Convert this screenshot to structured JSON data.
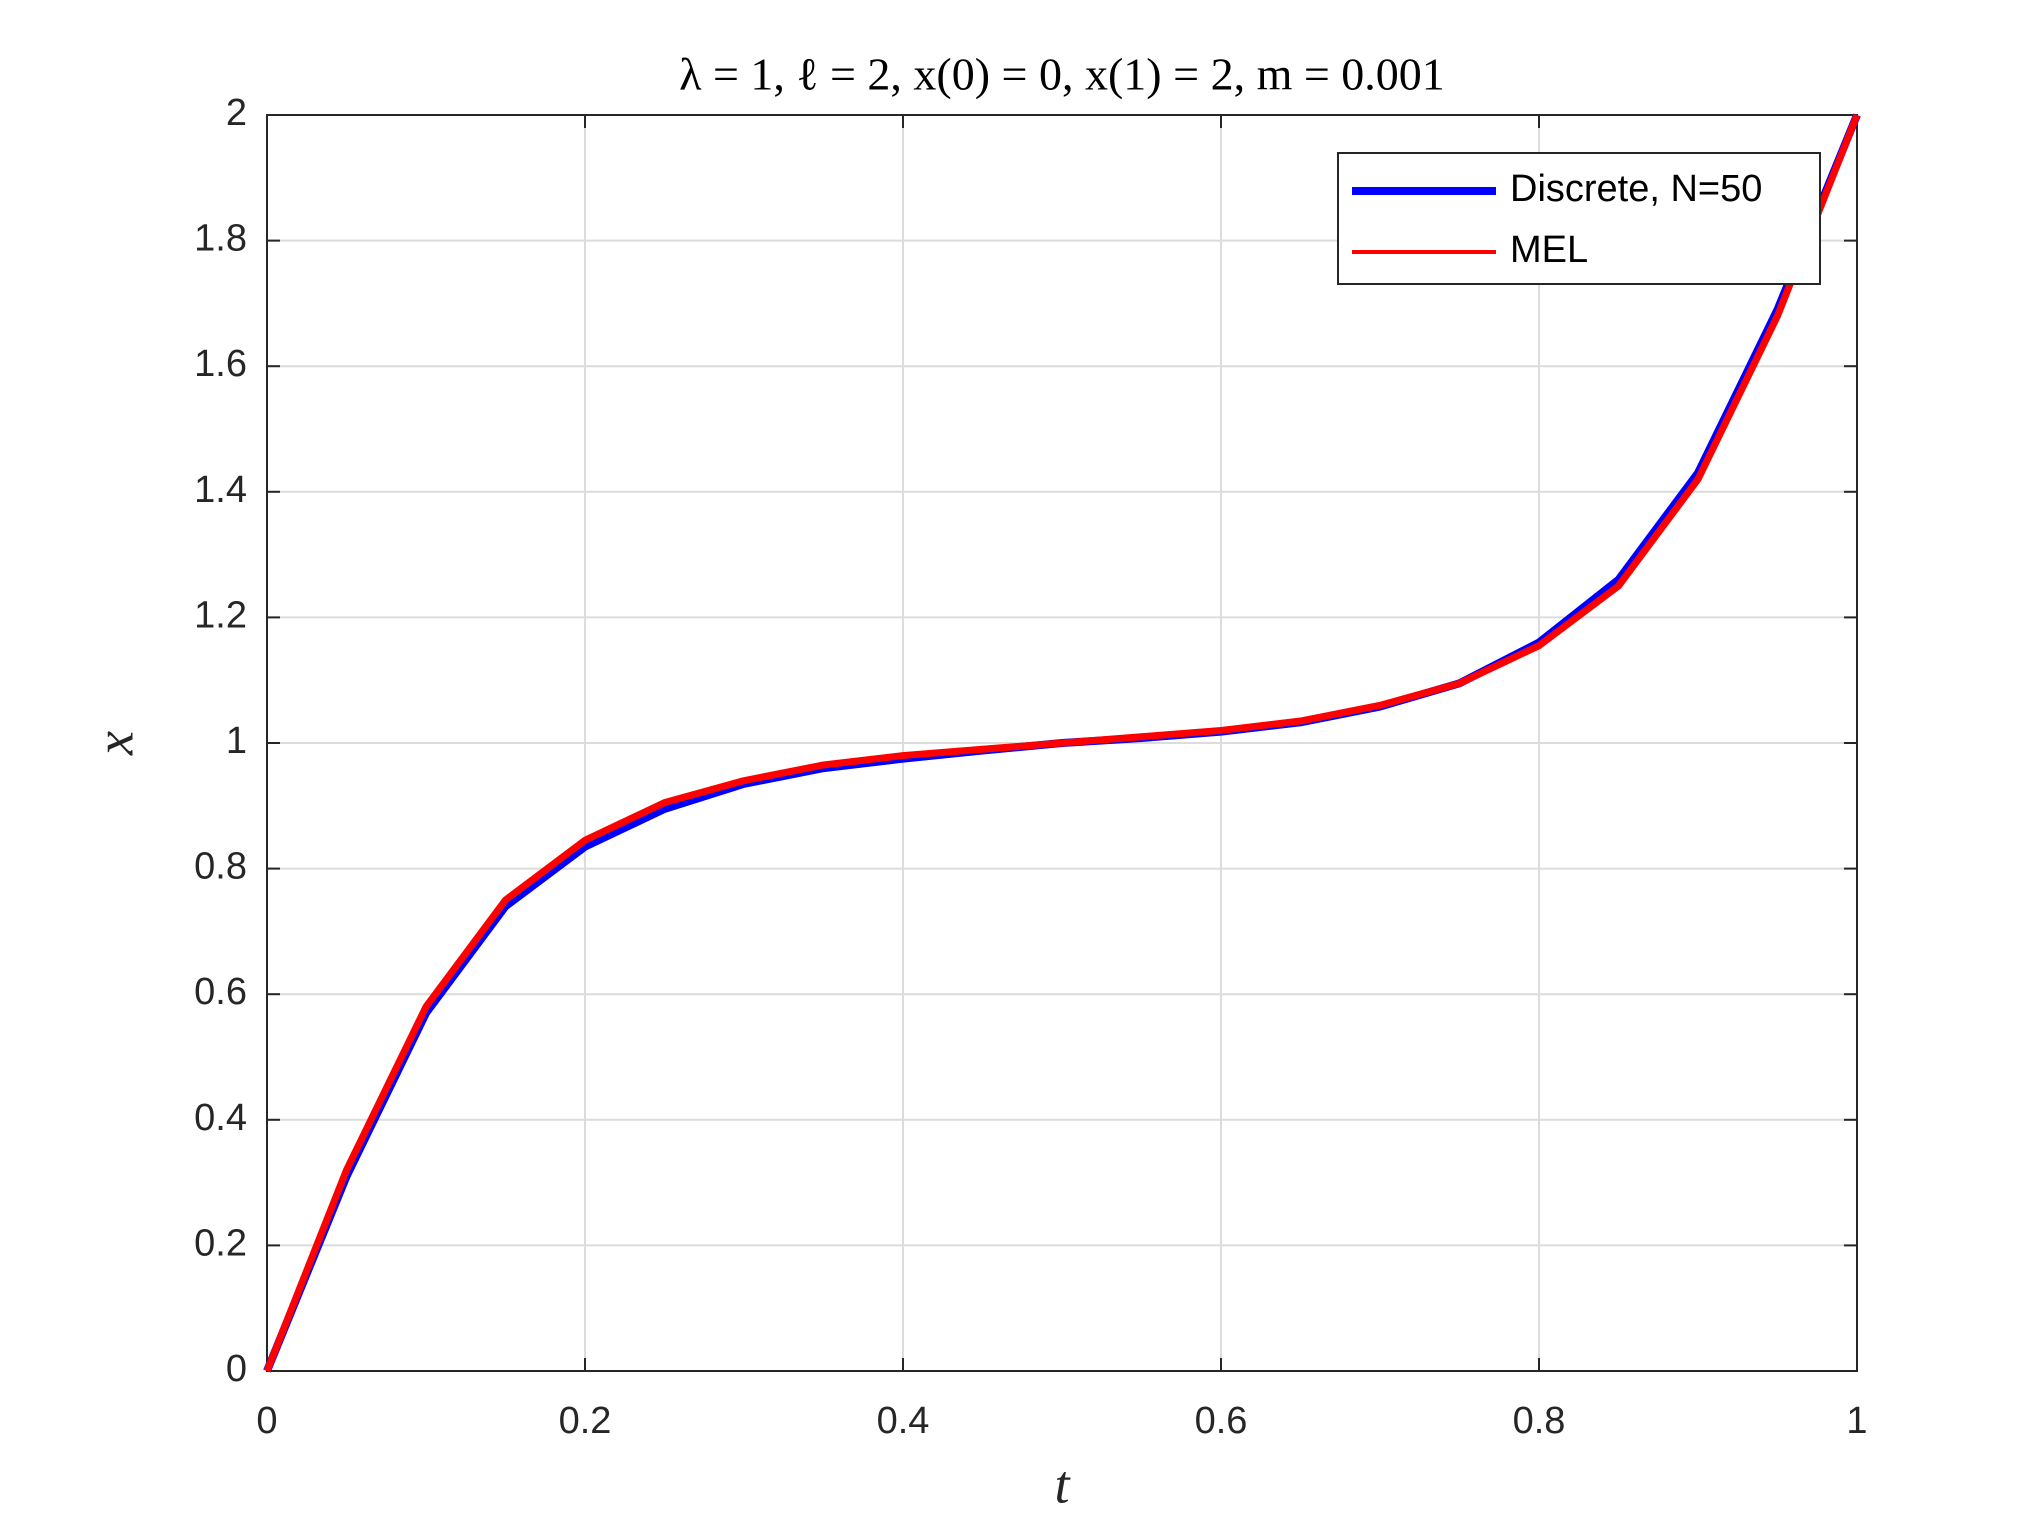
{
  "chart_data": {
    "type": "line",
    "title": "λ = 1, ℓ = 2, x(0) = 0, x(1) = 2, m = 0.001",
    "x_label": "t",
    "y_label": "x",
    "x": [
      0,
      0.05,
      0.1,
      0.15,
      0.2,
      0.25,
      0.3,
      0.35,
      0.4,
      0.45,
      0.5,
      0.55,
      0.6,
      0.65,
      0.7,
      0.75,
      0.8,
      0.85,
      0.9,
      0.95,
      1
    ],
    "series": [
      {
        "name": "Discrete, N=50",
        "color": "#0000ff",
        "values": [
          0,
          0.31,
          0.57,
          0.74,
          0.835,
          0.895,
          0.935,
          0.96,
          0.975,
          0.988,
          1.0,
          1.008,
          1.018,
          1.033,
          1.058,
          1.095,
          1.16,
          1.26,
          1.43,
          1.69,
          2
        ]
      },
      {
        "name": "MEL",
        "color": "#ff0000",
        "values": [
          0,
          0.32,
          0.58,
          0.75,
          0.845,
          0.905,
          0.94,
          0.965,
          0.98,
          0.99,
          1.0,
          1.01,
          1.02,
          1.035,
          1.06,
          1.095,
          1.155,
          1.25,
          1.42,
          1.68,
          2
        ]
      }
    ],
    "xlim": [
      0,
      1
    ],
    "xticks": [
      0,
      0.2,
      0.4,
      0.6,
      0.8,
      1
    ],
    "ylim": [
      0,
      2
    ],
    "yticks": [
      0,
      0.2,
      0.4,
      0.6,
      0.8,
      1,
      1.2,
      1.4,
      1.6,
      1.8,
      2
    ],
    "grid": true,
    "legend": "northeast"
  }
}
